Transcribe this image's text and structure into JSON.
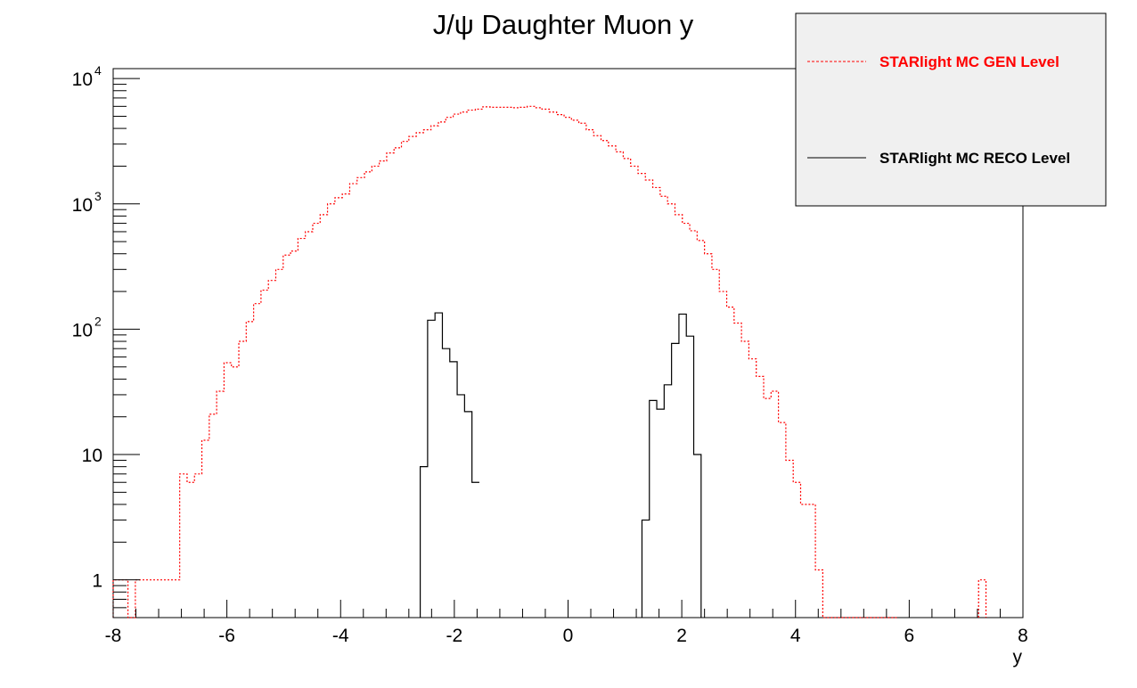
{
  "chart_data": {
    "type": "histogram",
    "title": "J/ψ Daughter Muon y",
    "xlabel": "y",
    "ylabel": "",
    "xlim": [
      -8,
      8
    ],
    "ylim": [
      0.5,
      12000
    ],
    "y_scale": "log",
    "bin_width": 0.13,
    "x_ticks": [
      "-8",
      "-6",
      "-4",
      "-2",
      "0",
      "2",
      "4",
      "6",
      "8"
    ],
    "y_ticks": [
      {
        "value": 1,
        "base": "1",
        "exp": ""
      },
      {
        "value": 10,
        "base": "10",
        "exp": ""
      },
      {
        "value": 100,
        "base": "10",
        "exp": "2"
      },
      {
        "value": 1000,
        "base": "10",
        "exp": "3"
      },
      {
        "value": 10000,
        "base": "10",
        "exp": "4"
      }
    ],
    "legend_position": "top-right",
    "series": [
      {
        "name": "STARlight MC GEN Level",
        "color": "#ff0000",
        "style": "dashed",
        "x_start": -8.0,
        "values": [
          1,
          1,
          0,
          1,
          1,
          1,
          1,
          1,
          1,
          7,
          6,
          7,
          13,
          21,
          32,
          54,
          50,
          80,
          115,
          160,
          205,
          245,
          300,
          390,
          420,
          530,
          600,
          700,
          820,
          1000,
          1120,
          1200,
          1450,
          1620,
          1800,
          2000,
          2200,
          2550,
          2800,
          3150,
          3450,
          3700,
          3900,
          4200,
          4500,
          4900,
          5200,
          5400,
          5600,
          5700,
          5950,
          5900,
          5900,
          5900,
          5850,
          5900,
          6000,
          5850,
          5700,
          5400,
          5150,
          4900,
          4650,
          4400,
          3900,
          3500,
          3200,
          2900,
          2600,
          2300,
          2000,
          1750,
          1550,
          1350,
          1150,
          1000,
          820,
          700,
          610,
          510,
          400,
          300,
          200,
          150,
          112,
          80,
          58,
          42,
          28,
          32,
          18,
          9,
          6,
          4,
          4,
          1.2,
          0,
          0,
          0,
          0,
          0,
          0,
          0,
          0,
          0,
          0
        ],
        "extra_bins": [
          {
            "x0": 7.22,
            "value": 1
          }
        ]
      },
      {
        "name": "STARlight MC RECO Level",
        "color": "#000000",
        "style": "solid",
        "bins": [
          {
            "x0": -2.6,
            "value": 8
          },
          {
            "x0": -2.47,
            "value": 118
          },
          {
            "x0": -2.34,
            "value": 135
          },
          {
            "x0": -2.21,
            "value": 70
          },
          {
            "x0": -2.08,
            "value": 55
          },
          {
            "x0": -1.95,
            "value": 30
          },
          {
            "x0": -1.82,
            "value": 22
          },
          {
            "x0": -1.69,
            "value": 6
          },
          {
            "x0": 1.3,
            "value": 3
          },
          {
            "x0": 1.43,
            "value": 27
          },
          {
            "x0": 1.56,
            "value": 23
          },
          {
            "x0": 1.69,
            "value": 36
          },
          {
            "x0": 1.82,
            "value": 77
          },
          {
            "x0": 1.95,
            "value": 132
          },
          {
            "x0": 2.08,
            "value": 88
          },
          {
            "x0": 2.21,
            "value": 10
          }
        ]
      }
    ]
  },
  "legend": {
    "items": [
      {
        "label": "STARlight MC GEN Level",
        "color": "#ff0000"
      },
      {
        "label": "STARlight MC RECO Level",
        "color": "#000000"
      }
    ]
  }
}
